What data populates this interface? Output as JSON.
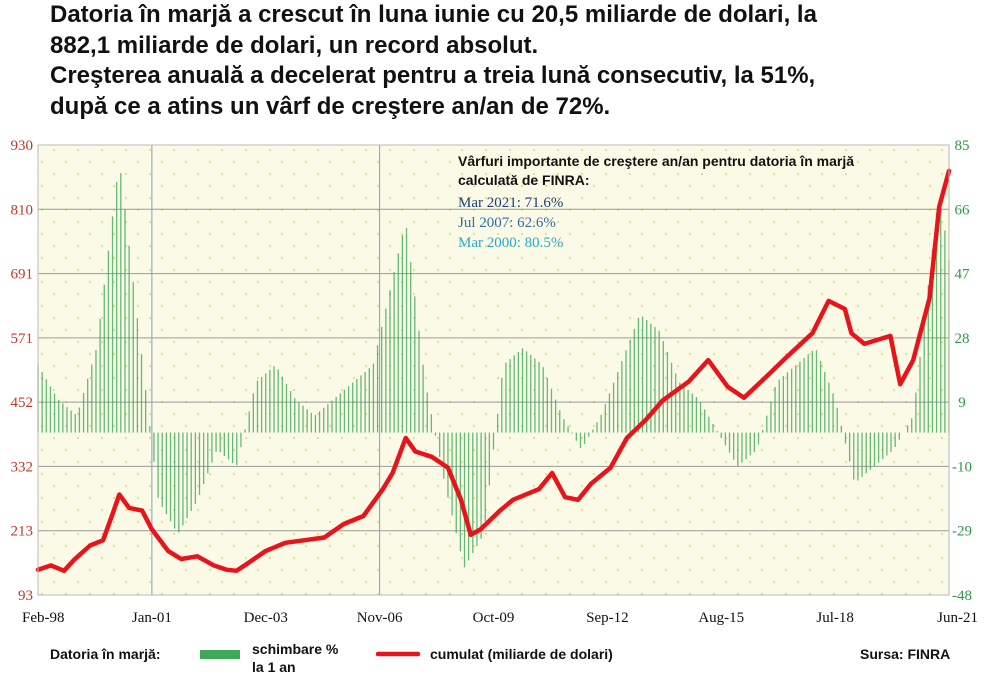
{
  "headline": [
    "Datoria în marjă a crescut în luna iunie cu 20,5 miliarde de dolari, la",
    "882,1 miliarde de dolari, un record absolut.",
    "Creşterea anuală a decelerat pentru a treia lună consecutiv, la 51%,",
    "după ce a atins un vârf de creştere an/an de 72%."
  ],
  "colors": {
    "line": "#e8141c",
    "bar": "#3fa95a",
    "left_axis": "#c0392b",
    "right_axis": "#2e9a4a",
    "plot_bg": "#fbfae6",
    "dots": "#d8e27a",
    "annot_1": "#1d3f73",
    "annot_2": "#2f6cb0",
    "annot_3": "#29a9c9"
  },
  "chart_data": {
    "type": "line+bar",
    "x_ticks": [
      "Feb-98",
      "Jan-01",
      "Dec-03",
      "Nov-06",
      "Oct-09",
      "Sep-12",
      "Aug-15",
      "Jul-18",
      "Jun-21"
    ],
    "left_axis": {
      "ticks": [
        "930",
        "810",
        "691",
        "571",
        "452",
        "332",
        "213",
        "93"
      ],
      "range": [
        93,
        930
      ],
      "unit": "miliarde de dolari"
    },
    "right_axis": {
      "ticks": [
        "85",
        "66",
        "47",
        "28",
        "9",
        "-10",
        "-29",
        "-48"
      ],
      "range": [
        -48,
        85
      ],
      "unit": "%"
    },
    "annotation": {
      "title": "Vârfuri importante de creştere an/an pentru datoria în marjă calculată de FINRA:",
      "items": [
        "Mar 2021: 71.6%",
        "Jul 2007: 62.6%",
        "Mar 2000: 80.5%"
      ]
    },
    "series": [
      {
        "name": "cumulat (miliarde de dolari)",
        "kind": "line",
        "axis": "left",
        "points": [
          [
            "1998-02",
            140
          ],
          [
            "1998-06",
            148
          ],
          [
            "1998-10",
            138
          ],
          [
            "1999-01",
            158
          ],
          [
            "1999-06",
            185
          ],
          [
            "1999-10",
            195
          ],
          [
            "2000-01",
            245
          ],
          [
            "2000-03",
            280
          ],
          [
            "2000-06",
            255
          ],
          [
            "2000-10",
            250
          ],
          [
            "2001-01",
            215
          ],
          [
            "2001-06",
            175
          ],
          [
            "2001-10",
            160
          ],
          [
            "2002-03",
            165
          ],
          [
            "2002-08",
            148
          ],
          [
            "2002-12",
            140
          ],
          [
            "2003-03",
            138
          ],
          [
            "2003-06",
            150
          ],
          [
            "2003-12",
            175
          ],
          [
            "2004-06",
            190
          ],
          [
            "2004-12",
            195
          ],
          [
            "2005-06",
            200
          ],
          [
            "2005-12",
            225
          ],
          [
            "2006-06",
            240
          ],
          [
            "2006-12",
            290
          ],
          [
            "2007-03",
            320
          ],
          [
            "2007-07",
            385
          ],
          [
            "2007-10",
            360
          ],
          [
            "2008-03",
            350
          ],
          [
            "2008-08",
            330
          ],
          [
            "2008-12",
            270
          ],
          [
            "2009-03",
            205
          ],
          [
            "2009-06",
            215
          ],
          [
            "2009-12",
            250
          ],
          [
            "2010-04",
            270
          ],
          [
            "2010-12",
            290
          ],
          [
            "2011-04",
            320
          ],
          [
            "2011-08",
            275
          ],
          [
            "2011-12",
            270
          ],
          [
            "2012-04",
            300
          ],
          [
            "2012-10",
            330
          ],
          [
            "2013-03",
            385
          ],
          [
            "2013-09",
            420
          ],
          [
            "2014-02",
            455
          ],
          [
            "2014-10",
            490
          ],
          [
            "2015-04",
            530
          ],
          [
            "2015-10",
            480
          ],
          [
            "2016-03",
            460
          ],
          [
            "2016-10",
            500
          ],
          [
            "2017-04",
            535
          ],
          [
            "2017-12",
            580
          ],
          [
            "2018-05",
            640
          ],
          [
            "2018-10",
            625
          ],
          [
            "2018-12",
            580
          ],
          [
            "2019-04",
            560
          ],
          [
            "2019-12",
            575
          ],
          [
            "2020-03",
            485
          ],
          [
            "2020-07",
            530
          ],
          [
            "2020-12",
            645
          ],
          [
            "2021-03",
            815
          ],
          [
            "2021-06",
            882
          ]
        ]
      },
      {
        "name": "schimbare % la 1 an",
        "kind": "bar",
        "axis": "right",
        "points": [
          [
            "1998-02",
            20
          ],
          [
            "1998-08",
            10
          ],
          [
            "1999-02",
            5
          ],
          [
            "1999-08",
            25
          ],
          [
            "2000-03",
            80.5
          ],
          [
            "2000-09",
            30
          ],
          [
            "2001-03",
            -20
          ],
          [
            "2001-09",
            -30
          ],
          [
            "2002-03",
            -20
          ],
          [
            "2002-09",
            -5
          ],
          [
            "2003-03",
            -10
          ],
          [
            "2003-09",
            15
          ],
          [
            "2004-03",
            20
          ],
          [
            "2004-09",
            10
          ],
          [
            "2005-03",
            5
          ],
          [
            "2005-09",
            10
          ],
          [
            "2006-03",
            15
          ],
          [
            "2006-09",
            20
          ],
          [
            "2007-07",
            62.6
          ],
          [
            "2008-01",
            15
          ],
          [
            "2008-07",
            -15
          ],
          [
            "2009-01",
            -40
          ],
          [
            "2009-07",
            -30
          ],
          [
            "2010-01",
            20
          ],
          [
            "2010-07",
            25
          ],
          [
            "2011-01",
            20
          ],
          [
            "2011-07",
            5
          ],
          [
            "2012-01",
            -5
          ],
          [
            "2012-07",
            5
          ],
          [
            "2013-01",
            20
          ],
          [
            "2013-07",
            35
          ],
          [
            "2014-01",
            30
          ],
          [
            "2014-07",
            15
          ],
          [
            "2015-01",
            10
          ],
          [
            "2015-07",
            0
          ],
          [
            "2016-01",
            -10
          ],
          [
            "2016-07",
            -5
          ],
          [
            "2017-01",
            15
          ],
          [
            "2017-07",
            20
          ],
          [
            "2018-01",
            25
          ],
          [
            "2018-07",
            10
          ],
          [
            "2019-01",
            -15
          ],
          [
            "2019-07",
            -10
          ],
          [
            "2020-01",
            -5
          ],
          [
            "2020-07",
            5
          ],
          [
            "2021-03",
            71.6
          ],
          [
            "2021-06",
            51
          ]
        ]
      }
    ]
  },
  "legend": {
    "title": "Datoria în marjă:",
    "bar_label_1": "schimbare %",
    "bar_label_2": "la 1 an",
    "line_label": "cumulat (miliarde de dolari)",
    "source": "Sursa: FINRA"
  }
}
